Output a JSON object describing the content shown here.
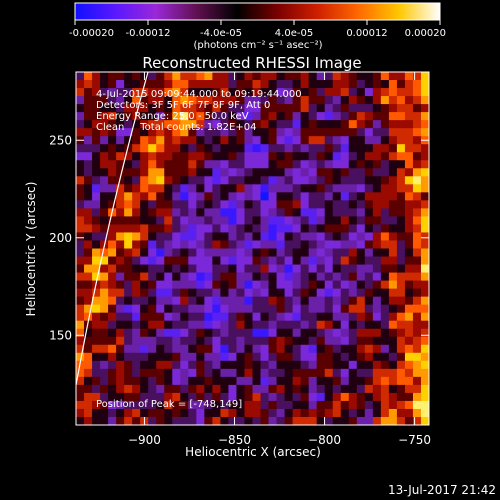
{
  "chart_data": {
    "type": "heatmap",
    "title": "Reconstructed RHESSI Image",
    "xlabel": "Heliocentric X (arcsec)",
    "ylabel": "Heliocentric Y (arcsec)",
    "xlim": [
      -938,
      -742
    ],
    "ylim": [
      104,
      285
    ],
    "x_ticks": [
      -900,
      -850,
      -800,
      -750
    ],
    "x_tick_labels": [
      "−900",
      "−850",
      "−800",
      "−750"
    ],
    "y_ticks": [
      150,
      200,
      250
    ],
    "y_tick_labels": [
      "150",
      "200",
      "250"
    ],
    "colorbar": {
      "min": -0.0002,
      "max": 0.0002,
      "ticks": [
        -0.0002,
        -0.00012,
        -4e-05,
        4e-05,
        0.00012,
        0.0002
      ],
      "tick_labels": [
        "-0.00020",
        "-0.00012",
        "-4.0e-05",
        "4.0e-05",
        "0.00012",
        "0.00020"
      ],
      "units": "(photons cm⁻² s⁻¹ asec⁻²)",
      "colors": [
        "#1010ff",
        "#5a18ff",
        "#9a28d8",
        "#601050",
        "#000000",
        "#7a0000",
        "#d02000",
        "#ff6a00",
        "#ffc800",
        "#ffffff"
      ]
    },
    "annotations": [
      "4-Jul-2015 09:09:44.000 to 09:19:44.000",
      "Detectors: 3F 5F 6F 7F 8F 9F, Att 0",
      "Energy Range: 25.0 - 50.0 keV",
      "Clean     Total counts: 1.82E+04"
    ],
    "peak_label": "Position of Peak = [-748,149]",
    "peak": [
      -748,
      149
    ],
    "limb_shown": true,
    "grid": false
  },
  "footer": {
    "timestamp": "13-Jul-2017 21:42"
  }
}
